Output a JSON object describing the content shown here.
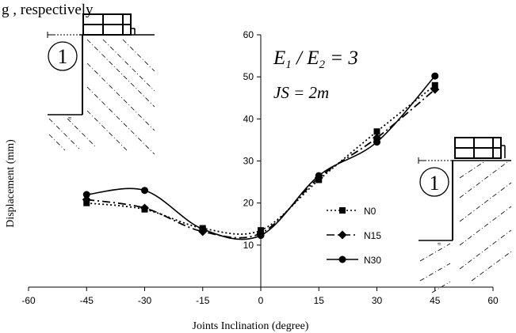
{
  "caption_fragment": "g        , respectively",
  "chart_data": {
    "type": "line",
    "xlabel": "Joints Inclination (degree)",
    "ylabel": "Displacement (mm)",
    "xlim": [
      -60,
      60
    ],
    "ylim": [
      0,
      60
    ],
    "x_ticks": [
      "-60",
      "-45",
      "-30",
      "-15",
      "0",
      "15",
      "30",
      "45",
      "60"
    ],
    "y_ticks": [
      "10",
      "20",
      "30",
      "40",
      "50",
      "60"
    ],
    "x": [
      -45,
      -30,
      -15,
      0,
      15,
      30,
      45
    ],
    "series": [
      {
        "name": "N0",
        "values": [
          20,
          18.5,
          14,
          13.5,
          25.5,
          37,
          48
        ],
        "marker": "square",
        "line": "dotted"
      },
      {
        "name": "N15",
        "values": [
          20.8,
          18.8,
          13.2,
          12.8,
          26,
          35.5,
          47
        ],
        "marker": "diamond",
        "line": "dashdot"
      },
      {
        "name": "N30",
        "values": [
          22,
          23,
          13.8,
          12.3,
          26.5,
          34.5,
          50.2
        ],
        "marker": "circle",
        "line": "solid"
      }
    ],
    "legend_position": "center-right",
    "grid": false,
    "annotations": {
      "ratio": "E1 / E2 = 3",
      "spacing": "JS = 2m",
      "circled_left": "1",
      "circled_right": "1"
    }
  }
}
